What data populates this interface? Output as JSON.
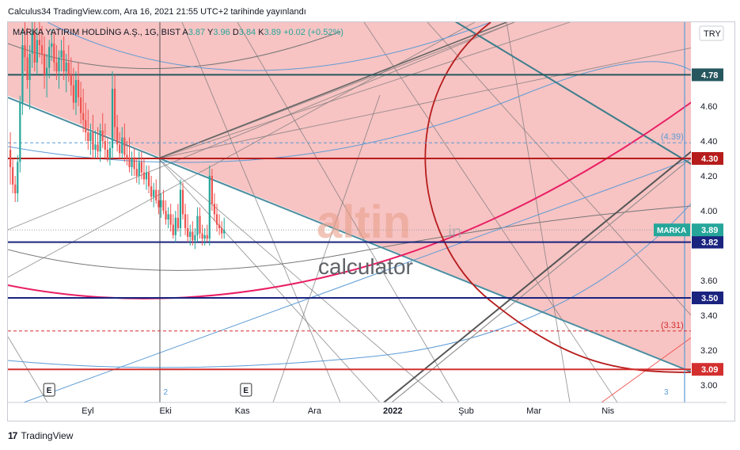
{
  "header": {
    "caption": "Calculus34 TradingView.com, Ara 16, 2021 21:55 UTC+2 tarihinde yayınlandı"
  },
  "footer": {
    "brand": "TradingView"
  },
  "legend": {
    "symbol": "MARKA YATIRIM HOLDİNG A.Ş., 1G, BIST",
    "open_label": "A",
    "open": "3.87",
    "high_label": "Y",
    "high": "3.96",
    "low_label": "D",
    "low": "3.84",
    "close_label": "K",
    "close": "3.89",
    "change": "+0.02 (+0.52%)"
  },
  "currency": "TRY",
  "watermark": {
    "brand": "altin",
    "suffix": ".in",
    "sub": "calculator"
  },
  "colors": {
    "up": "#26a69a",
    "down": "#ef5350",
    "zone": "#f3a3a3",
    "red_line": "#b71c1c",
    "navy_line": "#1a237e",
    "teal_line": "#26575e",
    "pink_curve": "#e91e63",
    "blue_line": "#5b9bd5"
  },
  "chart_data": {
    "type": "candlestick",
    "symbol": "MARKA",
    "ylim": [
      2.9,
      5.0
    ],
    "y_ticks": [
      3.0,
      3.2,
      3.4,
      3.6,
      4.0,
      4.2,
      4.4,
      4.6
    ],
    "x_ticks": [
      "Eyl",
      "Eki",
      "Kas",
      "Ara",
      "2022",
      "Şub",
      "Mar",
      "Nis"
    ],
    "x_tick_days": [
      42,
      74,
      105,
      135,
      166,
      197,
      225,
      256
    ],
    "x_range_days": [
      9,
      282
    ],
    "events": [
      {
        "label": "E",
        "day": 26
      },
      {
        "label": "E",
        "day": 107
      }
    ],
    "markers": [
      {
        "label": "2",
        "day": 74
      },
      {
        "label": "3",
        "day": 280
      }
    ],
    "horizontal_levels": [
      {
        "value": 4.78,
        "label": "4.78",
        "color": "#26575e"
      },
      {
        "value": 4.3,
        "label": "4.30",
        "color": "#b71c1c"
      },
      {
        "value": 3.82,
        "label": "3.82",
        "color": "#1a237e"
      },
      {
        "value": 3.5,
        "label": "3.50",
        "color": "#1a237e"
      },
      {
        "value": 3.09,
        "label": "3.09",
        "color": "#d32f2f"
      }
    ],
    "dashed_levels": [
      {
        "value": 4.39,
        "label": "(4.39)",
        "color": "#5b9bd5"
      },
      {
        "value": 3.31,
        "label": "(3.31)",
        "color": "#d32f2f"
      }
    ],
    "last_price": {
      "value": 3.89,
      "label": "3.89",
      "name": "MARKA"
    },
    "candles": [
      {
        "d": 10,
        "o": 4.35,
        "h": 4.45,
        "l": 4.15,
        "c": 4.25
      },
      {
        "d": 11,
        "o": 4.25,
        "h": 4.3,
        "l": 4.1,
        "c": 4.15
      },
      {
        "d": 12,
        "o": 4.15,
        "h": 4.2,
        "l": 4.05,
        "c": 4.1
      },
      {
        "d": 13,
        "o": 4.1,
        "h": 4.32,
        "l": 4.05,
        "c": 4.28
      },
      {
        "d": 14,
        "o": 4.28,
        "h": 4.66,
        "l": 4.22,
        "c": 4.62
      },
      {
        "d": 15,
        "o": 4.62,
        "h": 5.05,
        "l": 4.55,
        "c": 4.95
      },
      {
        "d": 16,
        "o": 4.95,
        "h": 5.1,
        "l": 4.8,
        "c": 4.88
      },
      {
        "d": 17,
        "o": 4.88,
        "h": 5.05,
        "l": 4.7,
        "c": 4.75
      },
      {
        "d": 18,
        "o": 4.75,
        "h": 4.95,
        "l": 4.58,
        "c": 4.9
      },
      {
        "d": 19,
        "o": 4.9,
        "h": 5.1,
        "l": 4.82,
        "c": 5.02
      },
      {
        "d": 20,
        "o": 5.02,
        "h": 5.1,
        "l": 4.8,
        "c": 4.85
      },
      {
        "d": 21,
        "o": 4.85,
        "h": 5.05,
        "l": 4.78,
        "c": 4.98
      },
      {
        "d": 22,
        "o": 4.98,
        "h": 5.1,
        "l": 4.88,
        "c": 4.95
      },
      {
        "d": 23,
        "o": 4.95,
        "h": 5.06,
        "l": 4.84,
        "c": 4.9
      },
      {
        "d": 24,
        "o": 4.9,
        "h": 5.0,
        "l": 4.7,
        "c": 4.78
      },
      {
        "d": 25,
        "o": 4.78,
        "h": 4.9,
        "l": 4.65,
        "c": 4.82
      },
      {
        "d": 26,
        "o": 4.82,
        "h": 4.98,
        "l": 4.76,
        "c": 4.94
      },
      {
        "d": 27,
        "o": 4.94,
        "h": 5.04,
        "l": 4.86,
        "c": 4.96
      },
      {
        "d": 28,
        "o": 4.96,
        "h": 5.02,
        "l": 4.8,
        "c": 4.85
      },
      {
        "d": 29,
        "o": 4.85,
        "h": 4.95,
        "l": 4.75,
        "c": 4.8
      },
      {
        "d": 30,
        "o": 4.8,
        "h": 4.92,
        "l": 4.7,
        "c": 4.88
      },
      {
        "d": 31,
        "o": 4.88,
        "h": 4.98,
        "l": 4.8,
        "c": 4.92
      },
      {
        "d": 32,
        "o": 4.92,
        "h": 5.0,
        "l": 4.75,
        "c": 4.8
      },
      {
        "d": 33,
        "o": 4.8,
        "h": 4.9,
        "l": 4.68,
        "c": 4.85
      },
      {
        "d": 34,
        "o": 4.85,
        "h": 4.95,
        "l": 4.74,
        "c": 4.78
      },
      {
        "d": 35,
        "o": 4.78,
        "h": 4.88,
        "l": 4.66,
        "c": 4.72
      },
      {
        "d": 36,
        "o": 4.72,
        "h": 4.82,
        "l": 4.58,
        "c": 4.62
      },
      {
        "d": 37,
        "o": 4.62,
        "h": 4.8,
        "l": 4.55,
        "c": 4.75
      },
      {
        "d": 38,
        "o": 4.75,
        "h": 4.85,
        "l": 4.6,
        "c": 4.65
      },
      {
        "d": 39,
        "o": 4.65,
        "h": 4.74,
        "l": 4.5,
        "c": 4.56
      },
      {
        "d": 40,
        "o": 4.56,
        "h": 4.7,
        "l": 4.45,
        "c": 4.52
      },
      {
        "d": 41,
        "o": 4.52,
        "h": 4.62,
        "l": 4.4,
        "c": 4.45
      },
      {
        "d": 42,
        "o": 4.45,
        "h": 4.58,
        "l": 4.35,
        "c": 4.4
      },
      {
        "d": 43,
        "o": 4.4,
        "h": 4.5,
        "l": 4.32,
        "c": 4.45
      },
      {
        "d": 44,
        "o": 4.45,
        "h": 4.55,
        "l": 4.3,
        "c": 4.35
      },
      {
        "d": 45,
        "o": 4.35,
        "h": 4.46,
        "l": 4.3,
        "c": 4.38
      },
      {
        "d": 46,
        "o": 4.38,
        "h": 4.48,
        "l": 4.3,
        "c": 4.34
      },
      {
        "d": 47,
        "o": 4.34,
        "h": 4.5,
        "l": 4.28,
        "c": 4.46
      },
      {
        "d": 48,
        "o": 4.46,
        "h": 4.56,
        "l": 4.36,
        "c": 4.4
      },
      {
        "d": 49,
        "o": 4.4,
        "h": 4.5,
        "l": 4.3,
        "c": 4.35
      },
      {
        "d": 50,
        "o": 4.35,
        "h": 4.42,
        "l": 4.28,
        "c": 4.3
      },
      {
        "d": 51,
        "o": 4.3,
        "h": 4.4,
        "l": 4.26,
        "c": 4.36
      },
      {
        "d": 52,
        "o": 4.36,
        "h": 4.8,
        "l": 4.3,
        "c": 4.7
      },
      {
        "d": 53,
        "o": 4.7,
        "h": 4.78,
        "l": 4.4,
        "c": 4.48
      },
      {
        "d": 54,
        "o": 4.48,
        "h": 4.55,
        "l": 4.34,
        "c": 4.38
      },
      {
        "d": 55,
        "o": 4.38,
        "h": 4.45,
        "l": 4.3,
        "c": 4.33
      },
      {
        "d": 56,
        "o": 4.33,
        "h": 4.48,
        "l": 4.3,
        "c": 4.42
      },
      {
        "d": 57,
        "o": 4.42,
        "h": 4.5,
        "l": 4.28,
        "c": 4.32
      },
      {
        "d": 58,
        "o": 4.32,
        "h": 4.4,
        "l": 4.26,
        "c": 4.3
      },
      {
        "d": 59,
        "o": 4.3,
        "h": 4.42,
        "l": 4.22,
        "c": 4.25
      },
      {
        "d": 60,
        "o": 4.25,
        "h": 4.34,
        "l": 4.2,
        "c": 4.3
      },
      {
        "d": 61,
        "o": 4.3,
        "h": 4.36,
        "l": 4.2,
        "c": 4.24
      },
      {
        "d": 62,
        "o": 4.24,
        "h": 4.3,
        "l": 4.16,
        "c": 4.2
      },
      {
        "d": 63,
        "o": 4.2,
        "h": 4.34,
        "l": 4.15,
        "c": 4.28
      },
      {
        "d": 64,
        "o": 4.28,
        "h": 4.34,
        "l": 4.18,
        "c": 4.22
      },
      {
        "d": 65,
        "o": 4.22,
        "h": 4.3,
        "l": 4.15,
        "c": 4.18
      },
      {
        "d": 66,
        "o": 4.18,
        "h": 4.26,
        "l": 4.12,
        "c": 4.22
      },
      {
        "d": 67,
        "o": 4.22,
        "h": 4.26,
        "l": 4.1,
        "c": 4.14
      },
      {
        "d": 68,
        "o": 4.14,
        "h": 4.2,
        "l": 4.05,
        "c": 4.08
      },
      {
        "d": 69,
        "o": 4.08,
        "h": 4.16,
        "l": 4.02,
        "c": 4.12
      },
      {
        "d": 70,
        "o": 4.12,
        "h": 4.18,
        "l": 4.04,
        "c": 4.06
      },
      {
        "d": 71,
        "o": 4.06,
        "h": 4.12,
        "l": 3.98,
        "c": 4.02
      },
      {
        "d": 72,
        "o": 4.02,
        "h": 4.1,
        "l": 3.96,
        "c": 4.06
      },
      {
        "d": 73,
        "o": 4.06,
        "h": 4.12,
        "l": 3.98,
        "c": 4.0
      },
      {
        "d": 74,
        "o": 4.0,
        "h": 4.06,
        "l": 3.92,
        "c": 3.95
      },
      {
        "d": 75,
        "o": 3.95,
        "h": 4.02,
        "l": 3.9,
        "c": 3.98
      },
      {
        "d": 76,
        "o": 3.98,
        "h": 4.04,
        "l": 3.88,
        "c": 3.92
      },
      {
        "d": 77,
        "o": 3.92,
        "h": 3.98,
        "l": 3.84,
        "c": 3.86
      },
      {
        "d": 78,
        "o": 3.86,
        "h": 4.0,
        "l": 3.82,
        "c": 3.96
      },
      {
        "d": 79,
        "o": 3.96,
        "h": 4.04,
        "l": 3.88,
        "c": 3.9
      },
      {
        "d": 80,
        "o": 3.9,
        "h": 4.18,
        "l": 3.85,
        "c": 4.12
      },
      {
        "d": 81,
        "o": 4.12,
        "h": 4.16,
        "l": 3.95,
        "c": 3.98
      },
      {
        "d": 82,
        "o": 3.98,
        "h": 4.04,
        "l": 3.86,
        "c": 3.9
      },
      {
        "d": 83,
        "o": 3.9,
        "h": 3.98,
        "l": 3.82,
        "c": 3.85
      },
      {
        "d": 84,
        "o": 3.85,
        "h": 3.92,
        "l": 3.8,
        "c": 3.88
      },
      {
        "d": 85,
        "o": 3.88,
        "h": 3.94,
        "l": 3.8,
        "c": 3.83
      },
      {
        "d": 86,
        "o": 3.83,
        "h": 3.9,
        "l": 3.78,
        "c": 3.86
      },
      {
        "d": 87,
        "o": 3.86,
        "h": 4.02,
        "l": 3.82,
        "c": 3.97
      },
      {
        "d": 88,
        "o": 3.97,
        "h": 4.02,
        "l": 3.84,
        "c": 3.87
      },
      {
        "d": 89,
        "o": 3.87,
        "h": 3.92,
        "l": 3.8,
        "c": 3.84
      },
      {
        "d": 90,
        "o": 3.84,
        "h": 3.9,
        "l": 3.8,
        "c": 3.86
      },
      {
        "d": 91,
        "o": 3.86,
        "h": 3.92,
        "l": 3.82,
        "c": 3.84
      },
      {
        "d": 92,
        "o": 3.84,
        "h": 4.26,
        "l": 3.8,
        "c": 4.2
      },
      {
        "d": 93,
        "o": 4.2,
        "h": 4.24,
        "l": 4.0,
        "c": 4.04
      },
      {
        "d": 94,
        "o": 4.04,
        "h": 4.1,
        "l": 3.94,
        "c": 3.98
      },
      {
        "d": 95,
        "o": 3.98,
        "h": 4.04,
        "l": 3.88,
        "c": 3.92
      },
      {
        "d": 96,
        "o": 3.92,
        "h": 3.98,
        "l": 3.86,
        "c": 3.9
      },
      {
        "d": 97,
        "o": 3.9,
        "h": 3.94,
        "l": 3.84,
        "c": 3.87
      },
      {
        "d": 98,
        "o": 3.87,
        "h": 3.96,
        "l": 3.84,
        "c": 3.89
      }
    ]
  }
}
